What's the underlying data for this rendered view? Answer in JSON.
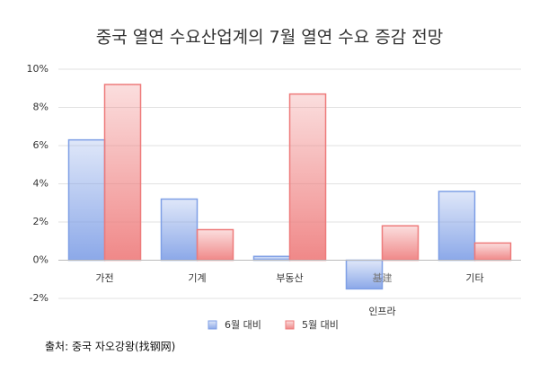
{
  "chart_data": {
    "type": "bar",
    "title": "중국 열연 수요산업계의 7월 열연 수요 증감 전망",
    "categories": [
      "가전",
      "기계",
      "부동산",
      "인프라",
      "기타"
    ],
    "series": [
      {
        "name": "6월 대비",
        "color": "#7f9fe6",
        "values": [
          6.3,
          3.2,
          0.2,
          -1.5,
          3.6
        ]
      },
      {
        "name": "5월 대비",
        "color": "#ee7b7b",
        "values": [
          9.2,
          1.6,
          8.7,
          1.8,
          0.9
        ]
      }
    ],
    "ylim": [
      -2,
      10
    ],
    "yticks": [
      {
        "value": -2,
        "label": "-2%"
      },
      {
        "value": 0,
        "label": "0%"
      },
      {
        "value": 2,
        "label": "2%"
      },
      {
        "value": 4,
        "label": "4%"
      },
      {
        "value": 6,
        "label": "6%"
      },
      {
        "value": 8,
        "label": "8%"
      },
      {
        "value": 10,
        "label": "10%"
      }
    ],
    "grid": true,
    "annotation": "基建",
    "source": "출처: 중국 자오강왕(找钢网)"
  }
}
